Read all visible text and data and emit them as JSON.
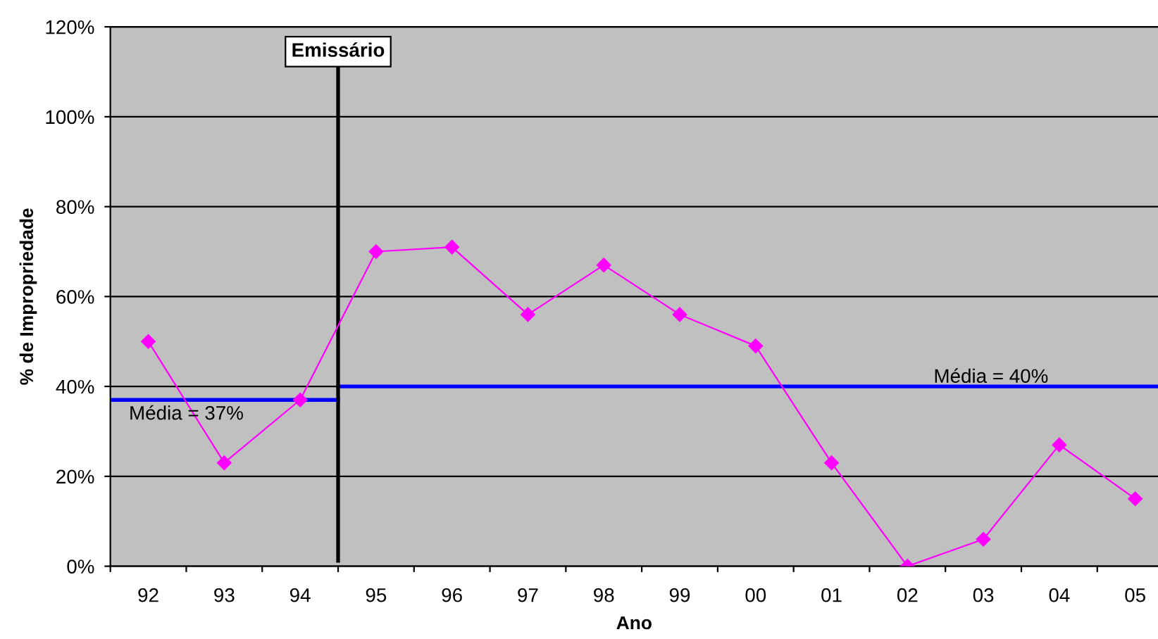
{
  "chart_data": {
    "type": "line",
    "xlabel": "Ano",
    "ylabel": "% de Impropriedade",
    "x": [
      1992,
      1993,
      1994,
      1995,
      1996,
      1997,
      1998,
      1999,
      2000,
      2001,
      2002,
      2003,
      2004,
      2005
    ],
    "xlim": [
      1991.5,
      2005.3
    ],
    "xticks": [
      {
        "value": 1991.5,
        "label": null
      },
      {
        "value": 1992,
        "label": "92"
      },
      {
        "value": 1992.5,
        "label": null
      },
      {
        "value": 1993,
        "label": "93"
      },
      {
        "value": 1993.5,
        "label": null
      },
      {
        "value": 1994,
        "label": "94"
      },
      {
        "value": 1994.5,
        "label": null
      },
      {
        "value": 1995,
        "label": "95"
      },
      {
        "value": 1995.5,
        "label": null
      },
      {
        "value": 1996,
        "label": "96"
      },
      {
        "value": 1996.5,
        "label": null
      },
      {
        "value": 1997,
        "label": "97"
      },
      {
        "value": 1997.5,
        "label": null
      },
      {
        "value": 1998,
        "label": "98"
      },
      {
        "value": 1998.5,
        "label": null
      },
      {
        "value": 1999,
        "label": "99"
      },
      {
        "value": 1999.5,
        "label": null
      },
      {
        "value": 2000,
        "label": "00"
      },
      {
        "value": 2000.5,
        "label": null
      },
      {
        "value": 2001,
        "label": "01"
      },
      {
        "value": 2001.5,
        "label": null
      },
      {
        "value": 2002,
        "label": "02"
      },
      {
        "value": 2002.5,
        "label": null
      },
      {
        "value": 2003,
        "label": "03"
      },
      {
        "value": 2003.5,
        "label": null
      },
      {
        "value": 2004,
        "label": "04"
      },
      {
        "value": 2004.5,
        "label": null
      },
      {
        "value": 2005,
        "label": "05"
      }
    ],
    "ylim": [
      0,
      120
    ],
    "yticks": [
      {
        "value": 0,
        "label": "0%"
      },
      {
        "value": 20,
        "label": "20%"
      },
      {
        "value": 40,
        "label": "40%"
      },
      {
        "value": 60,
        "label": "60%"
      },
      {
        "value": 80,
        "label": "80%"
      },
      {
        "value": 100,
        "label": "100%"
      },
      {
        "value": 120,
        "label": "120%"
      }
    ],
    "grid": "y",
    "marker": "diamond",
    "line_style": "solid",
    "series": [
      {
        "color": "#ff00ff",
        "values": [
          50,
          23,
          37,
          70,
          71,
          56,
          67,
          56,
          49,
          23,
          0,
          6,
          27,
          15
        ]
      },
      {
        "color": "#0000ff",
        "x": [
          1991.5,
          1994.5
        ],
        "values": [
          37,
          37
        ],
        "marker": "none"
      },
      {
        "color": "#0000ff",
        "x": [
          1994.5,
          2005.3
        ],
        "values": [
          40,
          40
        ],
        "marker": "none"
      }
    ],
    "ref_lines": [
      {
        "axis": "x",
        "value": 1994.5,
        "label": "Emissário",
        "color": "#000000"
      }
    ],
    "annotations": [
      {
        "text": "Média = 37%",
        "x": 1992.5,
        "y": 37
      },
      {
        "text": "Média = 40%",
        "x": 2003.1,
        "y": 40
      }
    ]
  }
}
